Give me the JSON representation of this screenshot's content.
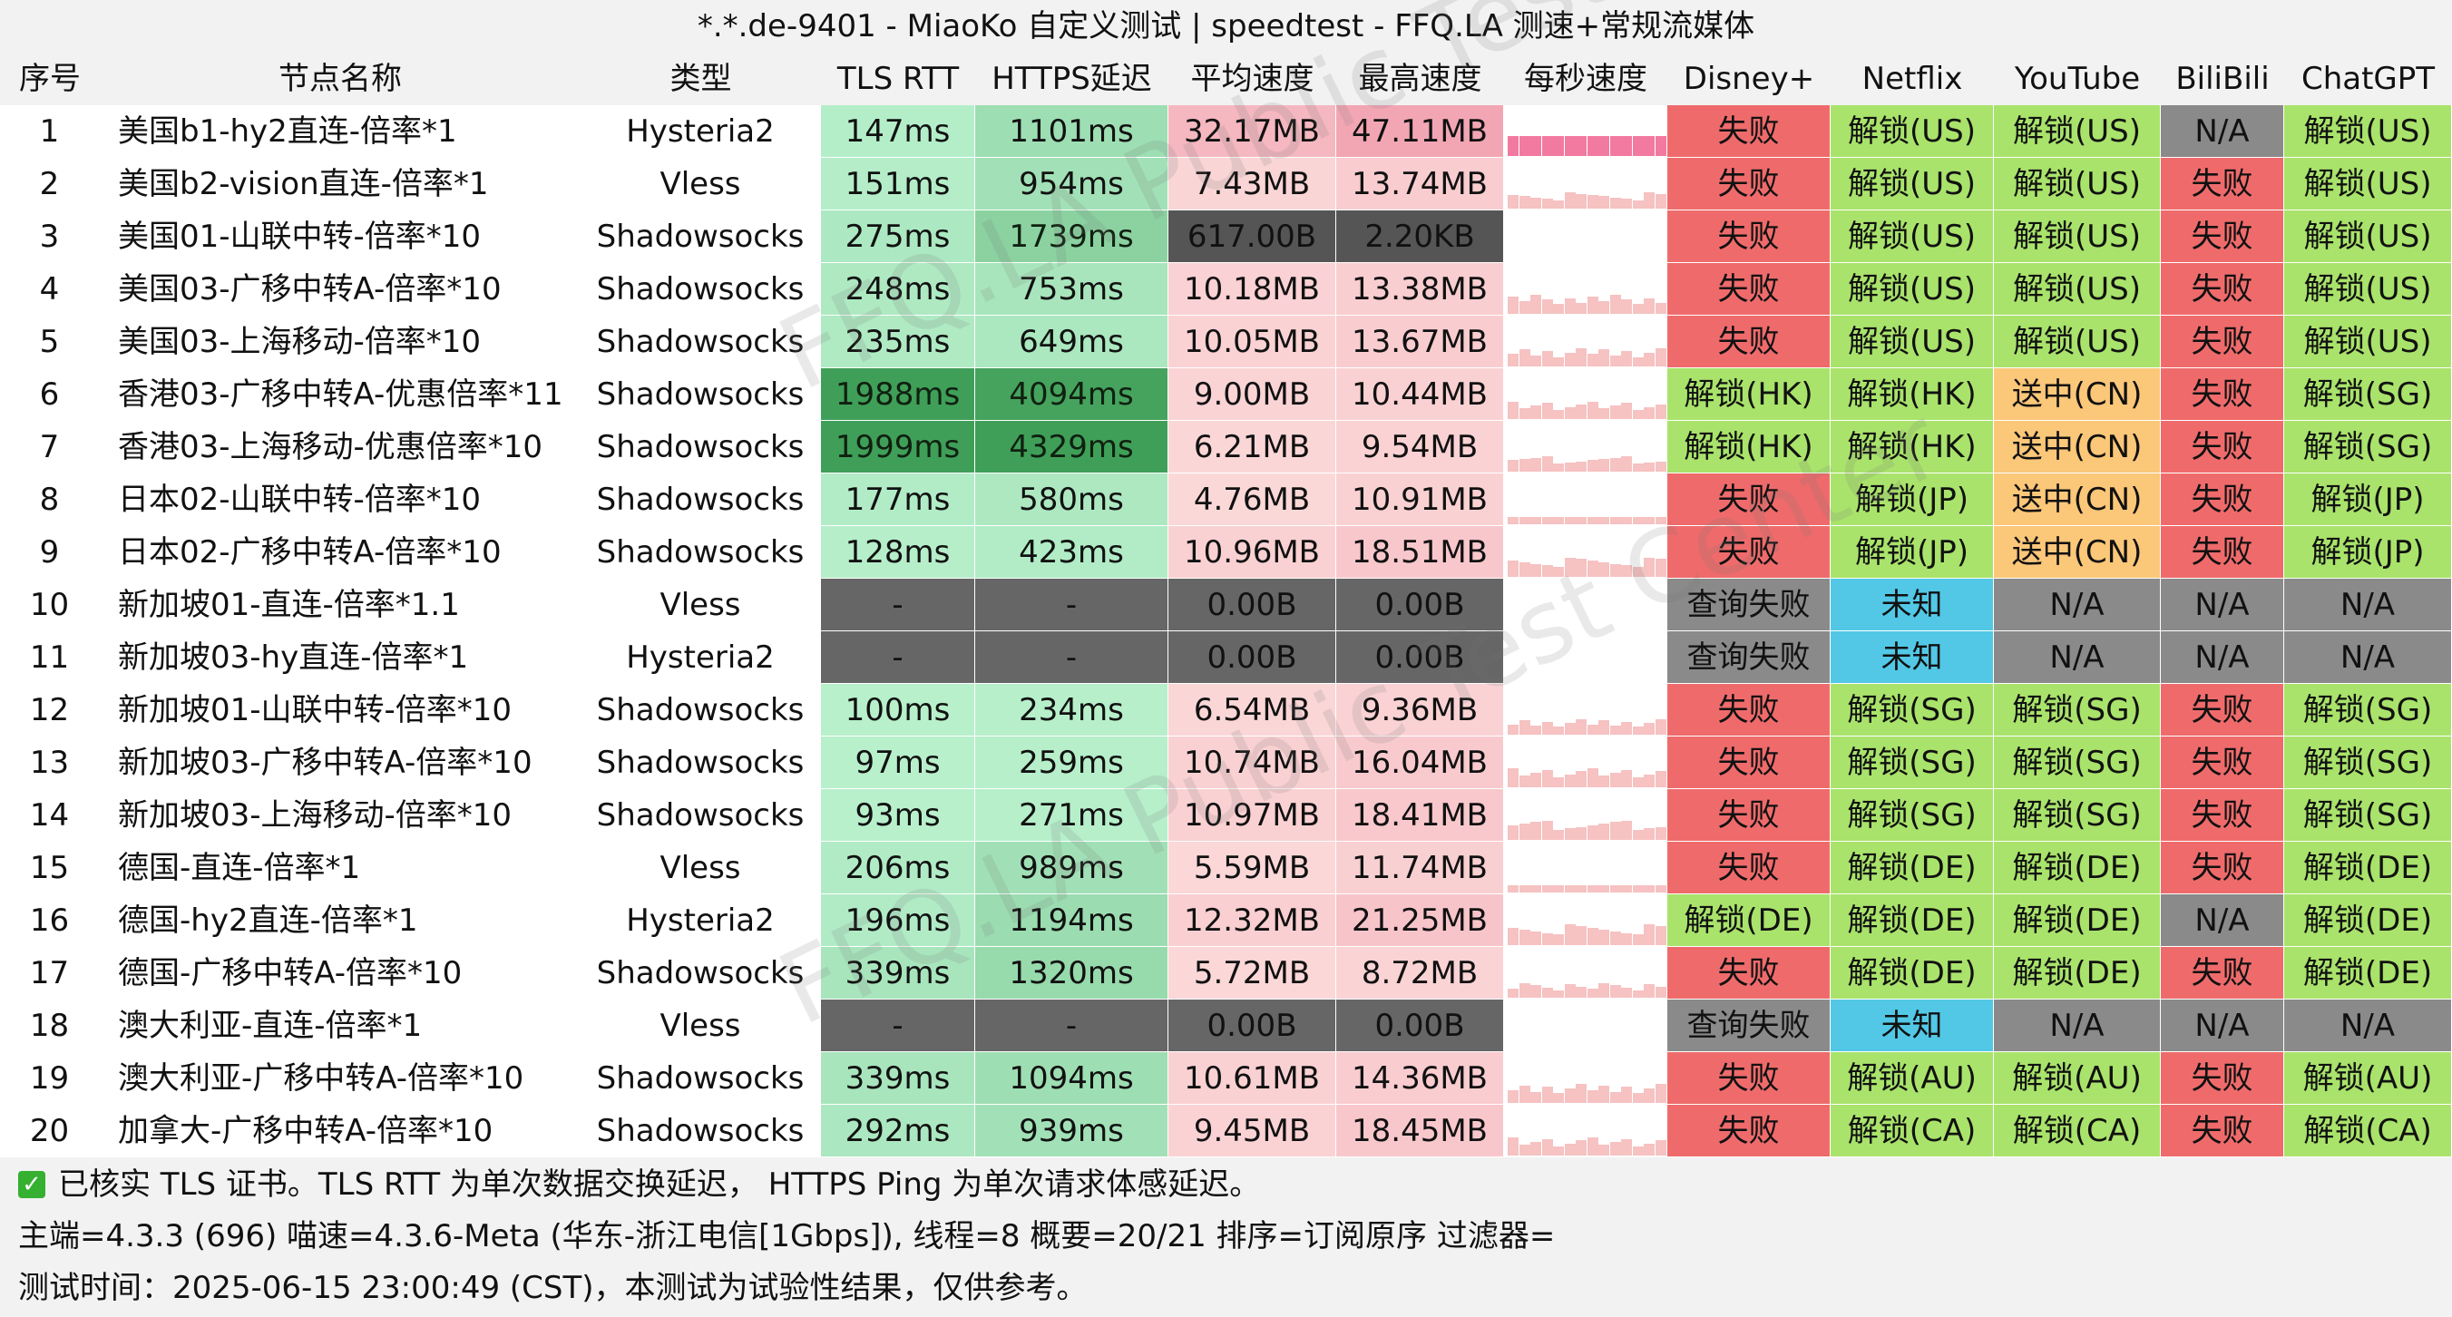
{
  "title": "*.*.de-9401 - MiaoKo 自定义测试 | speedtest - FFQ.LA 测速+常规流媒体",
  "headers": [
    "序号",
    "节点名称",
    "类型",
    "TLS RTT",
    "HTTPS延迟",
    "平均速度",
    "最高速度",
    "每秒速度",
    "Disney+",
    "Netflix",
    "YouTube",
    "BiliBili",
    "ChatGPT"
  ],
  "rows": [
    [
      "1",
      "美国b1-hy2直连-倍率*1",
      "Hysteria2",
      "147ms",
      "1101ms",
      "32.17MB",
      "47.11MB",
      "",
      "失败",
      "解锁(US)",
      "解锁(US)",
      "N/A",
      "解锁(US)"
    ],
    [
      "2",
      "美国b2-vision直连-倍率*1",
      "Vless",
      "151ms",
      "954ms",
      "7.43MB",
      "13.74MB",
      "",
      "失败",
      "解锁(US)",
      "解锁(US)",
      "失败",
      "解锁(US)"
    ],
    [
      "3",
      "美国01-山联中转-倍率*10",
      "Shadowsocks",
      "275ms",
      "1739ms",
      "617.00B",
      "2.20KB",
      "",
      "失败",
      "解锁(US)",
      "解锁(US)",
      "失败",
      "解锁(US)"
    ],
    [
      "4",
      "美国03-广移中转A-倍率*10",
      "Shadowsocks",
      "248ms",
      "753ms",
      "10.18MB",
      "13.38MB",
      "",
      "失败",
      "解锁(US)",
      "解锁(US)",
      "失败",
      "解锁(US)"
    ],
    [
      "5",
      "美国03-上海移动-倍率*10",
      "Shadowsocks",
      "235ms",
      "649ms",
      "10.05MB",
      "13.67MB",
      "",
      "失败",
      "解锁(US)",
      "解锁(US)",
      "失败",
      "解锁(US)"
    ],
    [
      "6",
      "香港03-广移中转A-优惠倍率*11",
      "Shadowsocks",
      "1988ms",
      "4094ms",
      "9.00MB",
      "10.44MB",
      "",
      "解锁(HK)",
      "解锁(HK)",
      "送中(CN)",
      "失败",
      "解锁(SG)"
    ],
    [
      "7",
      "香港03-上海移动-优惠倍率*10",
      "Shadowsocks",
      "1999ms",
      "4329ms",
      "6.21MB",
      "9.54MB",
      "",
      "解锁(HK)",
      "解锁(HK)",
      "送中(CN)",
      "失败",
      "解锁(SG)"
    ],
    [
      "8",
      "日本02-山联中转-倍率*10",
      "Shadowsocks",
      "177ms",
      "580ms",
      "4.76MB",
      "10.91MB",
      "",
      "失败",
      "解锁(JP)",
      "送中(CN)",
      "失败",
      "解锁(JP)"
    ],
    [
      "9",
      "日本02-广移中转A-倍率*10",
      "Shadowsocks",
      "128ms",
      "423ms",
      "10.96MB",
      "18.51MB",
      "",
      "失败",
      "解锁(JP)",
      "送中(CN)",
      "失败",
      "解锁(JP)"
    ],
    [
      "10",
      "新加坡01-直连-倍率*1.1",
      "Vless",
      "-",
      "-",
      "0.00B",
      "0.00B",
      "",
      "查询失败",
      "未知",
      "N/A",
      "N/A",
      "N/A"
    ],
    [
      "11",
      "新加坡03-hy直连-倍率*1",
      "Hysteria2",
      "-",
      "-",
      "0.00B",
      "0.00B",
      "",
      "查询失败",
      "未知",
      "N/A",
      "N/A",
      "N/A"
    ],
    [
      "12",
      "新加坡01-山联中转-倍率*10",
      "Shadowsocks",
      "100ms",
      "234ms",
      "6.54MB",
      "9.36MB",
      "",
      "失败",
      "解锁(SG)",
      "解锁(SG)",
      "失败",
      "解锁(SG)"
    ],
    [
      "13",
      "新加坡03-广移中转A-倍率*10",
      "Shadowsocks",
      "97ms",
      "259ms",
      "10.74MB",
      "16.04MB",
      "",
      "失败",
      "解锁(SG)",
      "解锁(SG)",
      "失败",
      "解锁(SG)"
    ],
    [
      "14",
      "新加坡03-上海移动-倍率*10",
      "Shadowsocks",
      "93ms",
      "271ms",
      "10.97MB",
      "18.41MB",
      "",
      "失败",
      "解锁(SG)",
      "解锁(SG)",
      "失败",
      "解锁(SG)"
    ],
    [
      "15",
      "德国-直连-倍率*1",
      "Vless",
      "206ms",
      "989ms",
      "5.59MB",
      "11.74MB",
      "",
      "失败",
      "解锁(DE)",
      "解锁(DE)",
      "失败",
      "解锁(DE)"
    ],
    [
      "16",
      "德国-hy2直连-倍率*1",
      "Hysteria2",
      "196ms",
      "1194ms",
      "12.32MB",
      "21.25MB",
      "",
      "解锁(DE)",
      "解锁(DE)",
      "解锁(DE)",
      "N/A",
      "解锁(DE)"
    ],
    [
      "17",
      "德国-广移中转A-倍率*10",
      "Shadowsocks",
      "339ms",
      "1320ms",
      "5.72MB",
      "8.72MB",
      "",
      "失败",
      "解锁(DE)",
      "解锁(DE)",
      "失败",
      "解锁(DE)"
    ],
    [
      "18",
      "澳大利亚-直连-倍率*1",
      "Vless",
      "-",
      "-",
      "0.00B",
      "0.00B",
      "",
      "查询失败",
      "未知",
      "N/A",
      "N/A",
      "N/A"
    ],
    [
      "19",
      "澳大利亚-广移中转A-倍率*10",
      "Shadowsocks",
      "339ms",
      "1094ms",
      "10.61MB",
      "14.36MB",
      "",
      "失败",
      "解锁(AU)",
      "解锁(AU)",
      "失败",
      "解锁(AU)"
    ],
    [
      "20",
      "加拿大-广移中转A-倍率*10",
      "Shadowsocks",
      "292ms",
      "939ms",
      "9.45MB",
      "18.45MB",
      "",
      "失败",
      "解锁(CA)",
      "解锁(CA)",
      "失败",
      "解锁(CA)"
    ]
  ],
  "footer": {
    "tls_note": "已核实 TLS 证书。TLS RTT 为单次数据交换延迟， HTTPS Ping 为单次请求体感延迟。",
    "info": "主端=4.3.3 (696) 喵速=4.3.6-Meta (华东-浙江电信[1Gbps]), 线程=8 概要=20/21 排序=订阅原序 过滤器=",
    "time": "测试时间：2025-06-15 23:00:49 (CST)，本测试为试验性结果，仅供参考。"
  },
  "watermark": "FFQ.LA Public Test Center",
  "colors": {
    "fail": "#ef6b6b",
    "unlock": "#a9e36b",
    "na": "#8a8a8a",
    "query_fail": "#8a8a8a",
    "unknown": "#52c8e6",
    "cn": "#fbc779",
    "missing": "#666666",
    "header_bg": "#f2f2f2",
    "check": "#35b030"
  }
}
